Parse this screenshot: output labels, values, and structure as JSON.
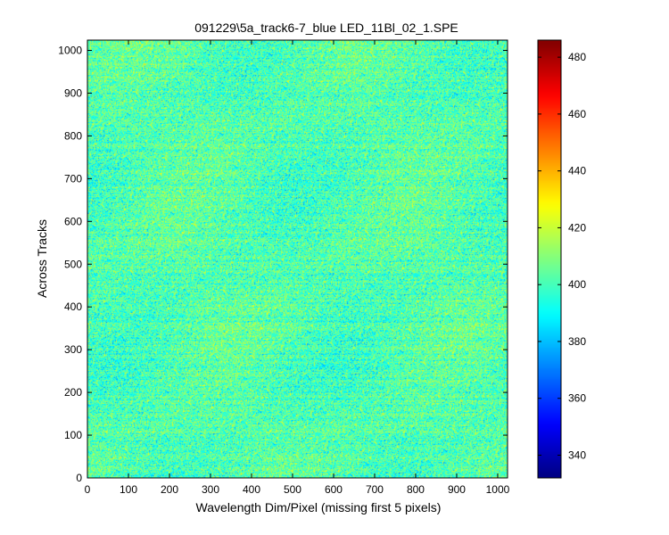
{
  "chart_data": {
    "type": "heatmap",
    "title": "091229\\5a_track6-7_blue LED_11Bl_02_1.SPE",
    "xlabel": "Wavelength Dim/Pixel (missing first 5 pixels)",
    "ylabel": "Across Tracks",
    "xlim": [
      0,
      1024
    ],
    "ylim": [
      0,
      1024
    ],
    "xticks": [
      "0",
      "100",
      "200",
      "300",
      "400",
      "500",
      "600",
      "700",
      "800",
      "900",
      "1000"
    ],
    "yticks": [
      "0",
      "100",
      "200",
      "300",
      "400",
      "500",
      "600",
      "700",
      "800",
      "900",
      "1000"
    ],
    "colorbar": {
      "colormap": "jet",
      "clim": [
        332,
        486
      ],
      "ticks": [
        "340",
        "360",
        "380",
        "400",
        "420",
        "440",
        "460",
        "480"
      ]
    },
    "value_mean": 402,
    "value_noise_range": [
      375,
      430
    ],
    "grid": false
  }
}
